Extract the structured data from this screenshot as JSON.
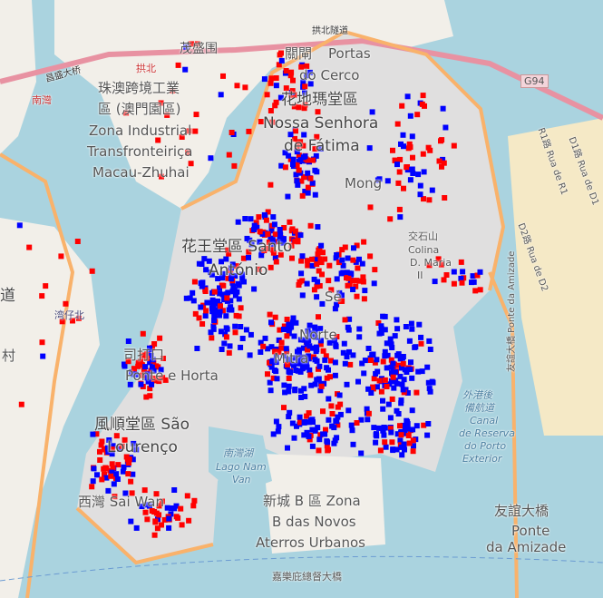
{
  "map": {
    "labels": {
      "maosheng": "茂盛围",
      "zhuao_zone_zh": "珠澳跨境工業",
      "zhuao_zone_zh2": "區 (澳門園區)",
      "zone_pt1": "Zona Industrial",
      "zone_pt2": "Transfronteiriça",
      "zone_pt3": "Macau-Zhuhai",
      "portas_zh": "關閘",
      "portas_pt1": "Portas",
      "portas_pt2": "do Cerco",
      "fatima_zh": "花地瑪堂區",
      "fatima_pt1": "Nossa Senhora",
      "fatima_pt2": "de Fátima",
      "mong": "Mong",
      "santo_zh": "花王堂區 Santo",
      "santo_pt": "António",
      "colina_zh": "交石山",
      "colina1": "Colina",
      "colina2": "D. Maria",
      "colina3": "II",
      "se": "Sé",
      "norte": "Norte",
      "mitra": "Mitra",
      "lazaro_zh": "司打口",
      "lazaro_pt": "Ponte e Horta",
      "lourenco_zh": "風順堂區 São",
      "lourenco_pt": "Lourenço",
      "saiwan": "西灣 Sai Wan",
      "nanwan_zh": "南灣湖",
      "nanwan_pt1": "Lago Nam",
      "nanwan_pt2": "Van",
      "zona_b1": "新城 B 區 Zona",
      "zona_b2": "B das Novos",
      "zona_b3": "Aterros Urbanos",
      "amizade_zh": "友誼大橋",
      "amizade_pt1": "Ponte",
      "amizade_pt2": "da Amizade",
      "canal1": "外港後",
      "canal2": "備航道",
      "canal3": "Canal",
      "canal4": "de Reserva",
      "canal5": "do Porto",
      "canal6": "Exterior",
      "bridge_road": "友誼大橋 Ponte da Amizade",
      "g94": "G94",
      "gongbei": "拱北",
      "gongbei_tunnel": "拱北隧道",
      "nanwan_road": "南灣",
      "wanzaibei": "湾仔北",
      "changsheng": "昌盛大桥",
      "r1": "R1路 Rua de R1",
      "d1": "D1路 Rua de D1",
      "d2": "D2路 Rua de D2",
      "jiayi": "嘉樂庇總督大橋",
      "dao": "道",
      "cun": "村"
    },
    "marker_colors": {
      "red": "#ff0000",
      "blue": "#0000ff"
    },
    "colors": {
      "water": "#aad3df",
      "land": "#f2efe9",
      "urban": "#e0dfdf",
      "road": "#f9b26b",
      "motorway": "#e892a2",
      "reclaimed": "#f5e9c6"
    }
  }
}
